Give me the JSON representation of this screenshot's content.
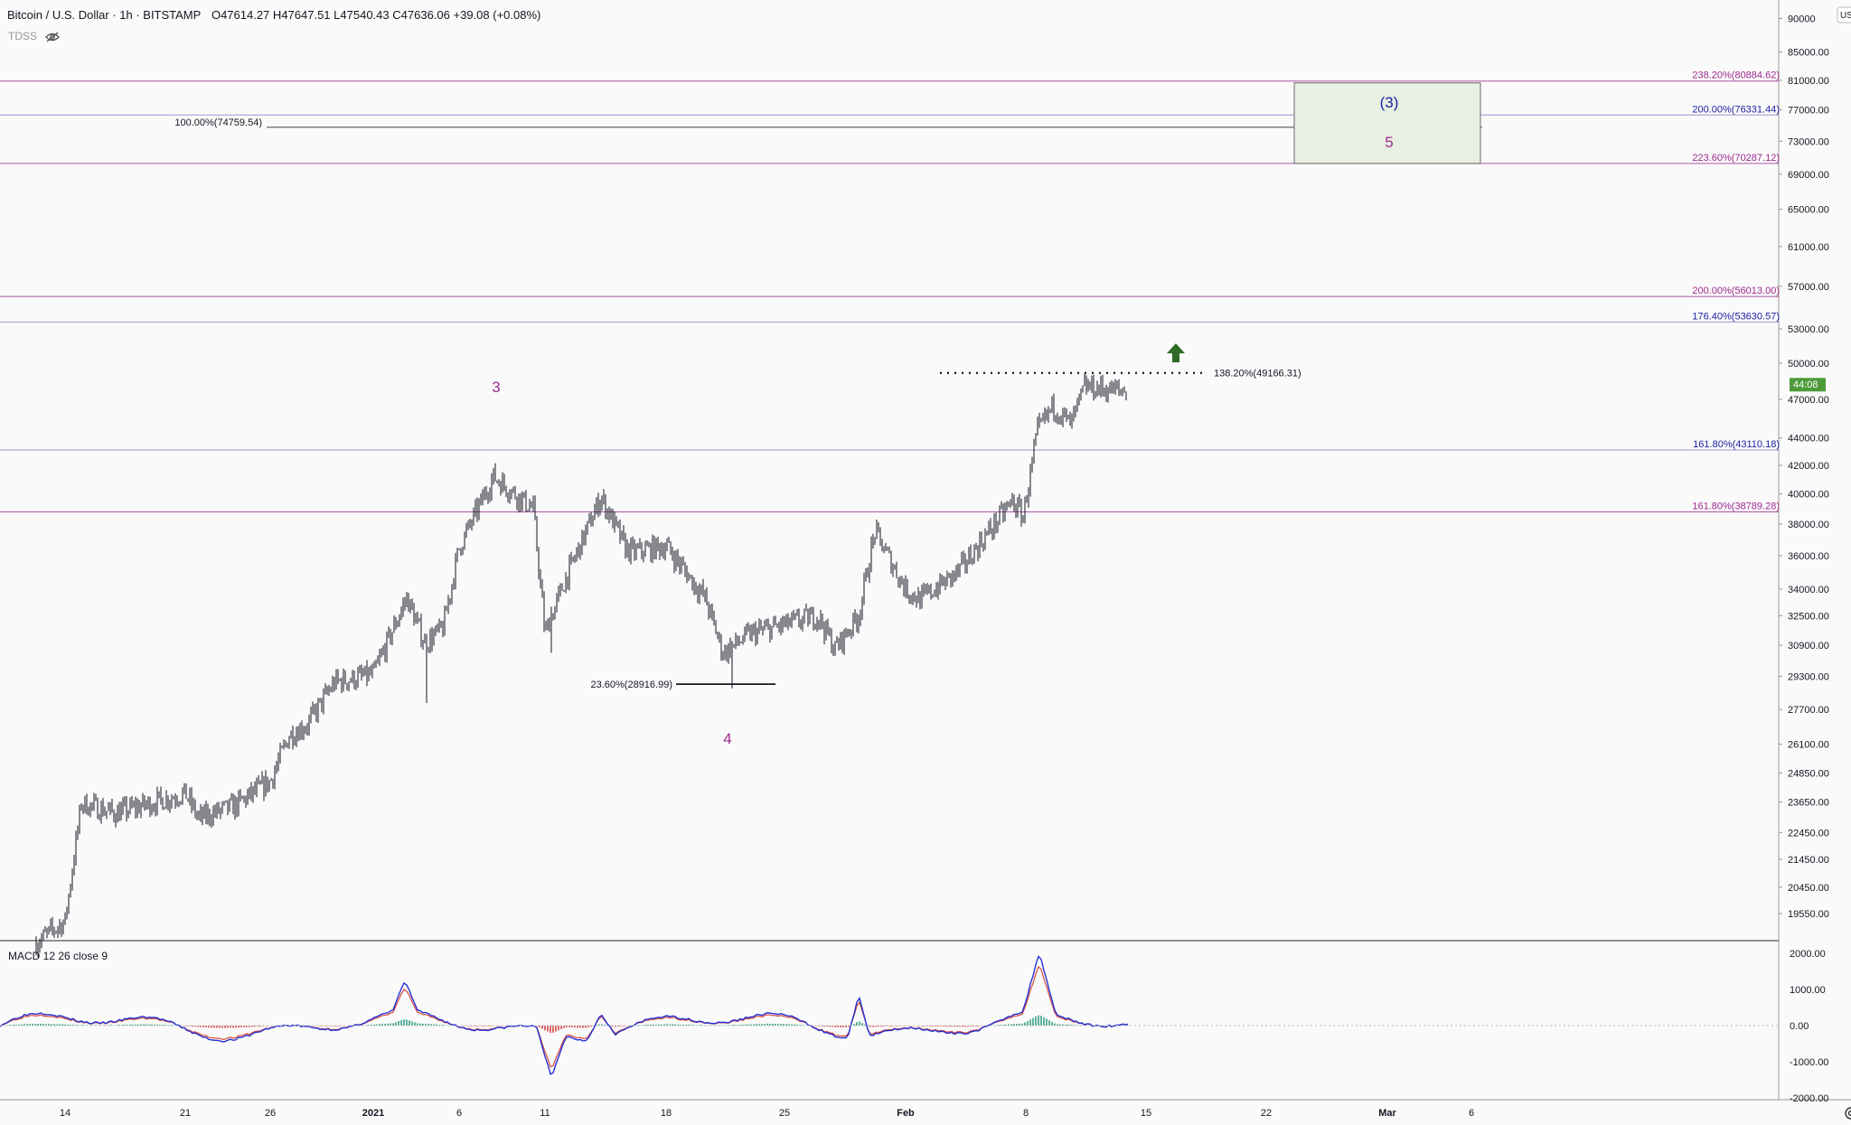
{
  "header": {
    "symbol": "Bitcoin / U.S. Dollar · 1h · BITSTAMP",
    "open_k": "O",
    "open": "47614.27",
    "high_k": "H",
    "high": "47647.51",
    "low_k": "L",
    "low": "47540.43",
    "close_k": "C",
    "close": "47636.06",
    "change": "+39.08 (+0.08%)"
  },
  "indicator": {
    "name": "TDSS"
  },
  "currency": "USD",
  "last_price_tag": "44:08",
  "macd_label": "MACD 12 26 close 9",
  "colors": {
    "candle": "#131722",
    "magenta": "#9c2b8f",
    "blue": "#1e22a3",
    "green_box": "#e7f0e2",
    "arrow": "#2e6b24",
    "macd_line": "#2431d6",
    "signal_line": "#d64a3a"
  },
  "chart_data": [
    {
      "type": "candlestick",
      "title": "Bitcoin / U.S. Dollar",
      "x_ticks": [
        "14",
        "21",
        "26",
        "2021",
        "6",
        "11",
        "18",
        "25",
        "Feb",
        "8",
        "15",
        "22",
        "Mar",
        "6"
      ],
      "y_ticks": [
        "90000",
        "85000.00",
        "81000.00",
        "77000.00",
        "73000.00",
        "69000.00",
        "65000.00",
        "61000.00",
        "57000.00",
        "53000.00",
        "50000.00",
        "47000.00",
        "44000.00",
        "42000.00",
        "40000.00",
        "38000.00",
        "36000.00",
        "34000.00",
        "32500.00",
        "30900.00",
        "29300.00",
        "27700.00",
        "26100.00",
        "24850.00",
        "23650.00",
        "22450.00",
        "21450.00",
        "20450.00",
        "19550.00"
      ],
      "y_scale": "log",
      "price_path": [
        [
          "14",
          18600
        ],
        [
          "16",
          19300
        ],
        [
          "17",
          23600
        ],
        [
          "19",
          23200
        ],
        [
          "21",
          24000
        ],
        [
          "22",
          23000
        ],
        [
          "24",
          23500
        ],
        [
          "26",
          24500
        ],
        [
          "27",
          26500
        ],
        [
          "28",
          27000
        ],
        [
          "30",
          29000
        ],
        [
          "2021",
          29400
        ],
        [
          "2",
          33500
        ],
        [
          "3",
          31000
        ],
        [
          "4",
          31800
        ],
        [
          "6",
          36500
        ],
        [
          "8",
          41200
        ],
        [
          "10",
          39000
        ],
        [
          "11",
          31500
        ],
        [
          "12",
          34500
        ],
        [
          "14",
          39800
        ],
        [
          "15",
          36500
        ],
        [
          "16",
          36200
        ],
        [
          "18",
          36600
        ],
        [
          "20",
          33500
        ],
        [
          "21",
          30500
        ],
        [
          "22",
          31500
        ],
        [
          "24",
          32000
        ],
        [
          "25",
          32500
        ],
        [
          "27",
          30700
        ],
        [
          "28",
          32500
        ],
        [
          "29",
          37500
        ],
        [
          "30",
          34000
        ],
        [
          "Feb",
          33400
        ],
        [
          "2",
          35000
        ],
        [
          "4",
          37200
        ],
        [
          "6",
          39500
        ],
        [
          "7",
          38500
        ],
        [
          "8",
          44500
        ],
        [
          "9",
          46500
        ],
        [
          "10",
          45000
        ],
        [
          "11",
          48000
        ],
        [
          "13",
          47636
        ]
      ],
      "annotations": [
        {
          "label": "3"
        },
        {
          "label": "4"
        },
        {
          "label": "(3)"
        },
        {
          "label": "5"
        }
      ],
      "fib_levels": [
        {
          "label": "238.20%(80884.62)",
          "value": 80884.62,
          "color": "magenta"
        },
        {
          "label": "200.00%(76331.44)",
          "value": 76331.44,
          "color": "blue"
        },
        {
          "label": "100.00%(74759.54)",
          "value": 74759.54,
          "color": "black"
        },
        {
          "label": "223.60%(70287.12)",
          "value": 70287.12,
          "color": "magenta"
        },
        {
          "label": "200.00%(56013.00)",
          "value": 56013.0,
          "color": "magenta"
        },
        {
          "label": "176.40%(53630.57)",
          "value": 53630.57,
          "color": "blue"
        },
        {
          "label": "138.20%(49166.31)",
          "value": 49166.31,
          "color": "black"
        },
        {
          "label": "161.80%(43110.18)",
          "value": 43110.18,
          "color": "blue"
        },
        {
          "label": "161.80%(38789.28)",
          "value": 38789.28,
          "color": "magenta"
        },
        {
          "label": "23.60%(28916.99)",
          "value": 28916.99,
          "color": "black"
        }
      ]
    },
    {
      "type": "line",
      "title": "MACD 12 26 close 9",
      "y_ticks": [
        "2000.00",
        "1000.00",
        "0.00",
        "-1000.00",
        "-2000.00"
      ],
      "ylim": [
        -2000,
        2000
      ]
    }
  ]
}
